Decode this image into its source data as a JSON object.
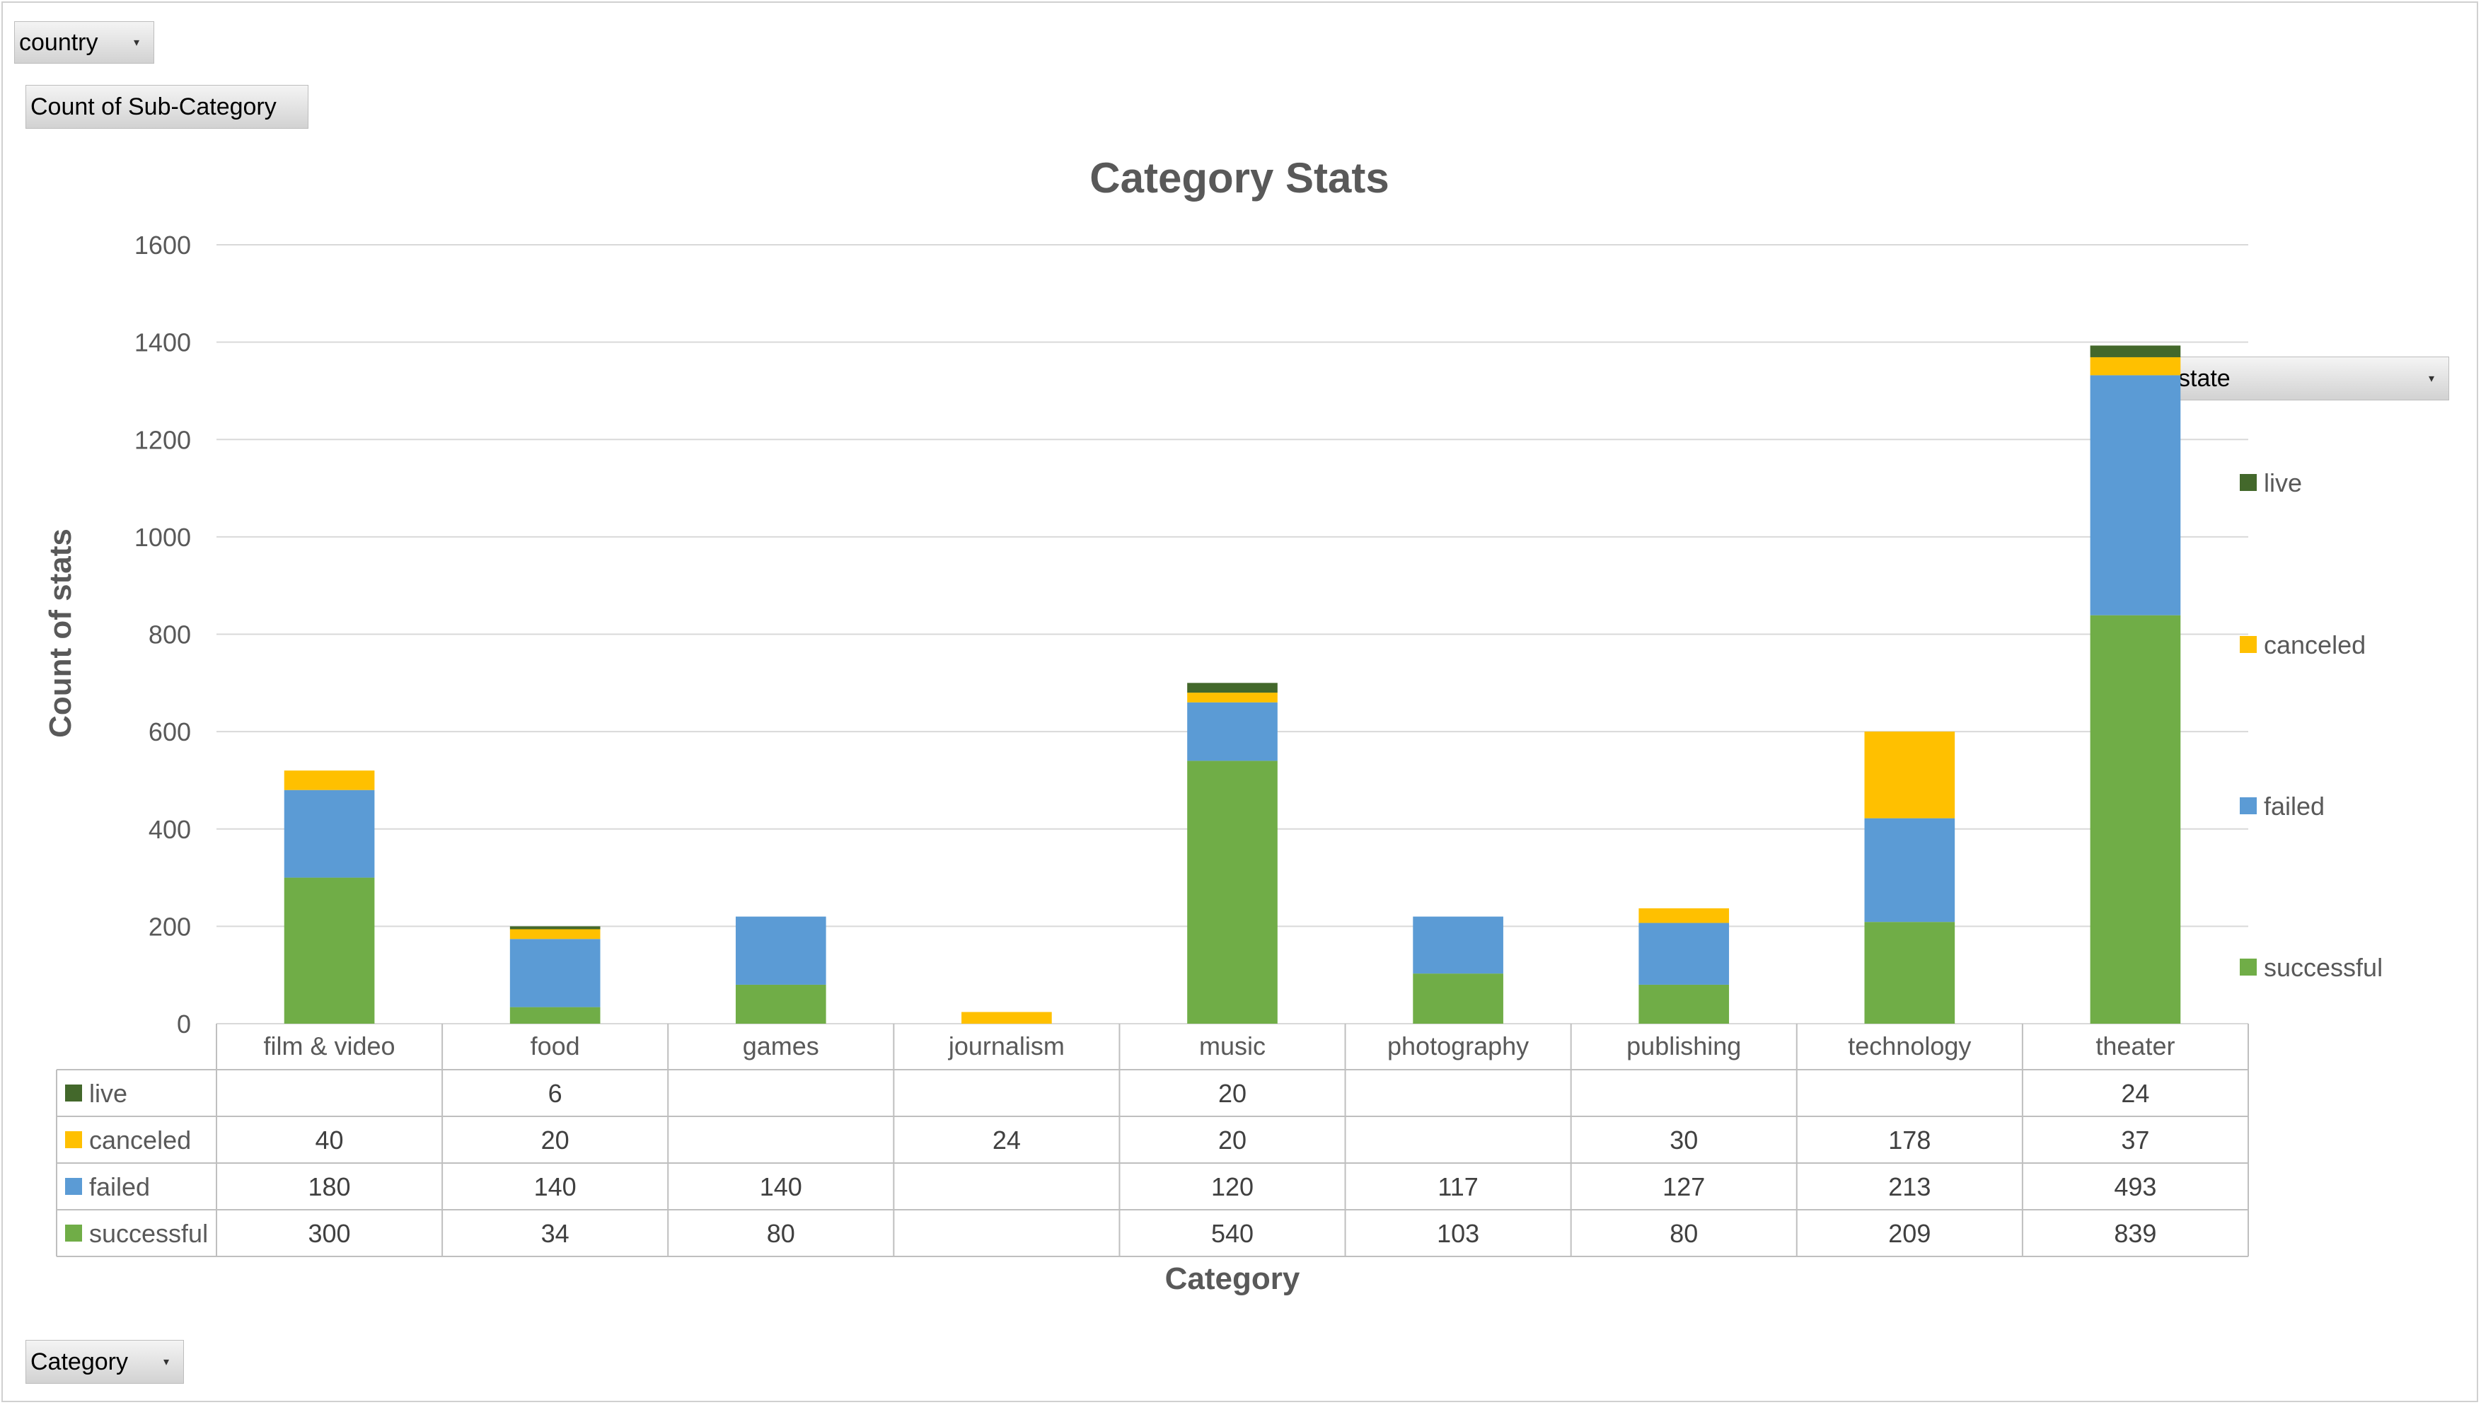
{
  "filters": {
    "country_label": "country",
    "values_label": "Count of Sub-Category",
    "legend_field_label": "state",
    "axis_field_label": "Category"
  },
  "chart_data": {
    "type": "bar",
    "stacked": true,
    "title": "Category Stats",
    "xlabel": "Category",
    "ylabel": "Count of stats",
    "ylim": [
      0,
      1600
    ],
    "yticks": [
      0,
      200,
      400,
      600,
      800,
      1000,
      1200,
      1400,
      1600
    ],
    "grid": true,
    "legend_position": "right",
    "categories": [
      "film & video",
      "food",
      "games",
      "journalism",
      "music",
      "photography",
      "publishing",
      "technology",
      "theater"
    ],
    "series": [
      {
        "name": "successful",
        "color": "#70AD47",
        "values": [
          300,
          34,
          80,
          null,
          540,
          103,
          80,
          209,
          839
        ]
      },
      {
        "name": "failed",
        "color": "#5B9BD5",
        "values": [
          180,
          140,
          140,
          null,
          120,
          117,
          127,
          213,
          493
        ]
      },
      {
        "name": "canceled",
        "color": "#FFC000",
        "values": [
          40,
          20,
          null,
          24,
          20,
          null,
          30,
          178,
          37
        ]
      },
      {
        "name": "live",
        "color": "#43682B",
        "values": [
          null,
          6,
          null,
          null,
          20,
          null,
          null,
          null,
          24
        ]
      }
    ]
  }
}
